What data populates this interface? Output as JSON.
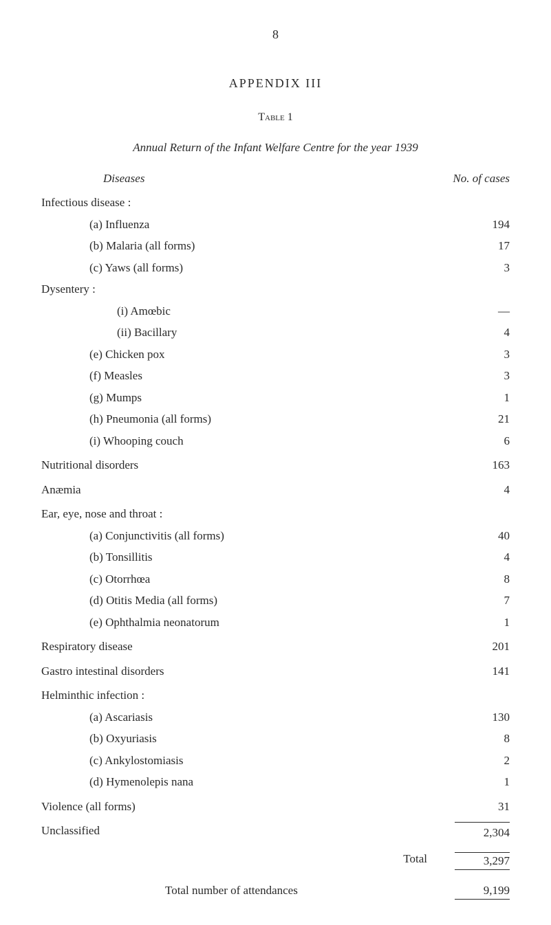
{
  "page_number": "8",
  "appendix_title": "APPENDIX III",
  "table_label": "Table 1",
  "report_title": "Annual Return of the Infant Welfare Centre for the year 1939",
  "diseases_header": "Diseases",
  "cases_header": "No. of cases",
  "infectious_label": "Infectious disease :",
  "items": {
    "influenza_label": "(a) Influenza",
    "influenza_value": "194",
    "malaria_label": "(b) Malaria (all forms)",
    "malaria_value": "17",
    "yaws_label": "(c) Yaws (all forms)",
    "yaws_value": "3",
    "dysentery_label": "Dysentery :",
    "amoebic_label": "(i) Amœbic",
    "amoebic_value": "—",
    "bacillary_label": "(ii) Bacillary",
    "bacillary_value": "4",
    "chickenpox_label": "(e) Chicken pox",
    "chickenpox_value": "3",
    "measles_label": "(f) Measles",
    "measles_value": "3",
    "mumps_label": "(g) Mumps",
    "mumps_value": "1",
    "pneumonia_label": "(h) Pneumonia (all forms)",
    "pneumonia_value": "21",
    "whooping_label": "(i) Whooping couch",
    "whooping_value": "6",
    "nutritional_label": "Nutritional disorders",
    "nutritional_value": "163",
    "anaemia_label": "Anæmia",
    "anaemia_value": "4",
    "ear_label": "Ear, eye, nose and throat :",
    "conjunctivitis_label": "(a) Conjunctivitis (all forms)",
    "conjunctivitis_value": "40",
    "tonsillitis_label": "(b) Tonsillitis",
    "tonsillitis_value": "4",
    "otorrhoea_label": "(c) Otorrhœa",
    "otorrhoea_value": "8",
    "otitis_label": "(d) Otitis Media (all forms)",
    "otitis_value": "7",
    "ophthalmia_label": "(e) Ophthalmia neonatorum",
    "ophthalmia_value": "1",
    "respiratory_label": "Respiratory disease",
    "respiratory_value": "201",
    "gastro_label": "Gastro intestinal disorders",
    "gastro_value": "141",
    "helminthic_label": "Helminthic infection :",
    "ascariasis_label": "(a) Ascariasis",
    "ascariasis_value": "130",
    "oxyuriasis_label": "(b) Oxyuriasis",
    "oxyuriasis_value": "8",
    "ankylo_label": "(c) Ankylostomiasis",
    "ankylo_value": "2",
    "hymeno_label": "(d) Hymenolepis nana",
    "hymeno_value": "1",
    "violence_label": "Violence (all forms)",
    "violence_value": "31",
    "unclassified_label": "Unclassified",
    "unclassified_value": "2,304"
  },
  "total_label": "Total",
  "total_value": "3,297",
  "attendance_label": "Total number of attendances",
  "attendance_value": "9,199",
  "colors": {
    "background": "#ffffff",
    "text": "#2a2a2a"
  },
  "typography": {
    "font_family": "Georgia, Times New Roman, serif",
    "body_size_pt": 13,
    "title_size_pt": 14
  }
}
